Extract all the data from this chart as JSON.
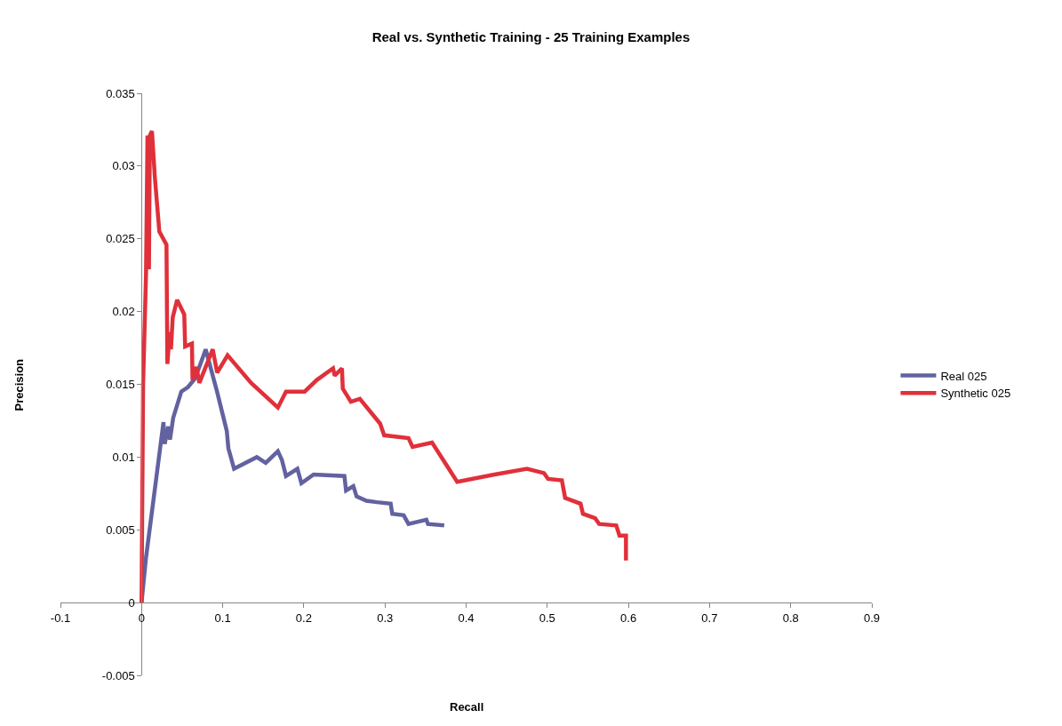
{
  "chart_data": {
    "type": "line",
    "title": "Real vs. Synthetic Training - 25 Training Examples",
    "xlabel": "Recall",
    "ylabel": "Precision",
    "xlim": [
      -0.1,
      0.9
    ],
    "xticks": [
      -0.1,
      0,
      0.1,
      0.2,
      0.3,
      0.4,
      0.5,
      0.6,
      0.7,
      0.8,
      0.9
    ],
    "ylim": [
      -0.005,
      0.035
    ],
    "yticks": [
      -0.005,
      0,
      0.005,
      0.01,
      0.015,
      0.02,
      0.025,
      0.03,
      0.035
    ],
    "grid": false,
    "legend": "right",
    "marker": "none",
    "line_style": "solid",
    "series": [
      {
        "name": "Real 025",
        "color": "#6262a0",
        "x": [
          0,
          0.0055,
          0.027,
          0.0285,
          0.033,
          0.035,
          0.039,
          0.049,
          0.057,
          0.066,
          0.079,
          0.093,
          0.101,
          0.105,
          0.107,
          0.114,
          0.142,
          0.153,
          0.168,
          0.173,
          0.178,
          0.192,
          0.197,
          0.212,
          0.25,
          0.252,
          0.261,
          0.265,
          0.277,
          0.29,
          0.307,
          0.309,
          0.323,
          0.329,
          0.351,
          0.353,
          0.373
        ],
        "values": [
          0,
          0.0031,
          0.0124,
          0.0109,
          0.0121,
          0.0112,
          0.0127,
          0.0145,
          0.0148,
          0.0154,
          0.0174,
          0.0145,
          0.0127,
          0.0118,
          0.0106,
          0.0092,
          0.01,
          0.0096,
          0.0104,
          0.0098,
          0.0087,
          0.0092,
          0.0082,
          0.0088,
          0.0087,
          0.0077,
          0.008,
          0.0073,
          0.007,
          0.0069,
          0.0068,
          0.0061,
          0.006,
          0.0054,
          0.0057,
          0.0054,
          0.0053
        ]
      },
      {
        "name": "Synthetic 025",
        "color": "#e0303a",
        "x": [
          0,
          0.0019,
          0.0055,
          0.0073,
          0.0091,
          0.0102,
          0.0128,
          0.0164,
          0.0219,
          0.0307,
          0.0318,
          0.0347,
          0.0362,
          0.0384,
          0.0438,
          0.0526,
          0.0537,
          0.0621,
          0.0628,
          0.0676,
          0.0712,
          0.0877,
          0.0932,
          0.106,
          0.135,
          0.168,
          0.178,
          0.201,
          0.216,
          0.236,
          0.238,
          0.247,
          0.248,
          0.258,
          0.269,
          0.294,
          0.299,
          0.329,
          0.334,
          0.358,
          0.389,
          0.435,
          0.475,
          0.496,
          0.501,
          0.518,
          0.522,
          0.541,
          0.544,
          0.559,
          0.564,
          0.585,
          0.589,
          0.597,
          0.597
        ],
        "values": [
          0,
          0.015,
          0.0226,
          0.0321,
          0.0229,
          0.0321,
          0.0324,
          0.0292,
          0.0255,
          0.0246,
          0.0164,
          0.0186,
          0.0174,
          0.0196,
          0.0208,
          0.0198,
          0.0176,
          0.0178,
          0.0153,
          0.0162,
          0.0151,
          0.0174,
          0.0158,
          0.017,
          0.0151,
          0.0134,
          0.0145,
          0.0145,
          0.0153,
          0.0161,
          0.0156,
          0.0161,
          0.0147,
          0.0138,
          0.014,
          0.0123,
          0.0115,
          0.0113,
          0.0107,
          0.011,
          0.0083,
          0.0088,
          0.0092,
          0.0089,
          0.0085,
          0.0084,
          0.0072,
          0.0068,
          0.0061,
          0.0058,
          0.0054,
          0.0053,
          0.0046,
          0.0046,
          0.0029
        ]
      }
    ]
  }
}
